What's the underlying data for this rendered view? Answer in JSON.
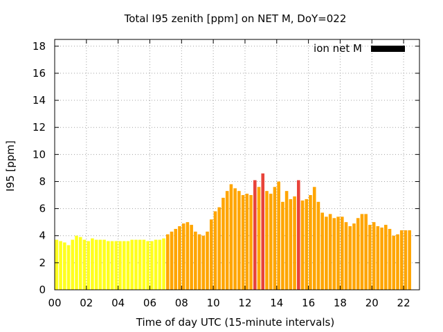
{
  "chart_data": {
    "type": "bar",
    "title": "Total I95 zenith [ppm] on NET M, DoY=022",
    "xlabel": "Time of day UTC (15-minute intervals)",
    "ylabel": "I95 [ppm]",
    "xlim": [
      0,
      23
    ],
    "ylim": [
      0,
      18.5
    ],
    "xticks": [
      "00",
      "02",
      "04",
      "06",
      "08",
      "10",
      "12",
      "14",
      "16",
      "18",
      "20",
      "22"
    ],
    "yticks": [
      "0",
      "2",
      "4",
      "6",
      "8",
      "10",
      "12",
      "14",
      "16",
      "18"
    ],
    "grid": true,
    "legend": {
      "label": "ion net M",
      "color": "#000000",
      "position": "top-right"
    },
    "level_colors": {
      "low": "#ffff1e",
      "medium": "#ffa500",
      "high": "#e8433a"
    },
    "bar_width_hours": 0.2,
    "x_start_hour": 0.125,
    "x_step_hours": 0.25,
    "values": [
      3.7,
      3.6,
      3.5,
      3.3,
      3.7,
      4.0,
      3.9,
      3.7,
      3.6,
      3.8,
      3.7,
      3.7,
      3.7,
      3.6,
      3.6,
      3.6,
      3.6,
      3.6,
      3.6,
      3.7,
      3.7,
      3.7,
      3.7,
      3.6,
      3.6,
      3.7,
      3.7,
      3.8,
      4.1,
      4.3,
      4.5,
      4.7,
      4.9,
      5.0,
      4.8,
      4.3,
      4.1,
      4.0,
      4.3,
      5.2,
      5.8,
      6.1,
      6.8,
      7.3,
      7.8,
      7.5,
      7.3,
      7.0,
      7.1,
      7.0,
      8.1,
      7.6,
      8.6,
      7.3,
      7.1,
      7.6,
      8.0,
      6.5,
      7.3,
      6.7,
      6.9,
      8.1,
      6.6,
      6.7,
      7.0,
      7.6,
      6.5,
      5.7,
      5.4,
      5.6,
      5.3,
      5.4,
      5.4,
      5.0,
      4.7,
      4.9,
      5.3,
      5.6,
      5.6,
      4.8,
      5.0,
      4.7,
      4.6,
      4.8,
      4.5,
      4.0,
      4.1,
      4.4,
      4.4,
      4.4
    ],
    "levels": [
      "low",
      "low",
      "low",
      "low",
      "low",
      "low",
      "low",
      "low",
      "low",
      "low",
      "low",
      "low",
      "low",
      "low",
      "low",
      "low",
      "low",
      "low",
      "low",
      "low",
      "low",
      "low",
      "low",
      "low",
      "low",
      "low",
      "low",
      "low",
      "medium",
      "medium",
      "medium",
      "medium",
      "medium",
      "medium",
      "medium",
      "medium",
      "medium",
      "medium",
      "medium",
      "medium",
      "medium",
      "medium",
      "medium",
      "medium",
      "medium",
      "medium",
      "medium",
      "medium",
      "medium",
      "medium",
      "high",
      "medium",
      "high",
      "medium",
      "medium",
      "medium",
      "medium",
      "medium",
      "medium",
      "medium",
      "medium",
      "high",
      "medium",
      "medium",
      "medium",
      "medium",
      "medium",
      "medium",
      "medium",
      "medium",
      "medium",
      "medium",
      "medium",
      "medium",
      "medium",
      "medium",
      "medium",
      "medium",
      "medium",
      "medium",
      "medium",
      "medium",
      "medium",
      "medium",
      "medium",
      "medium",
      "medium",
      "medium",
      "medium",
      "medium"
    ]
  }
}
